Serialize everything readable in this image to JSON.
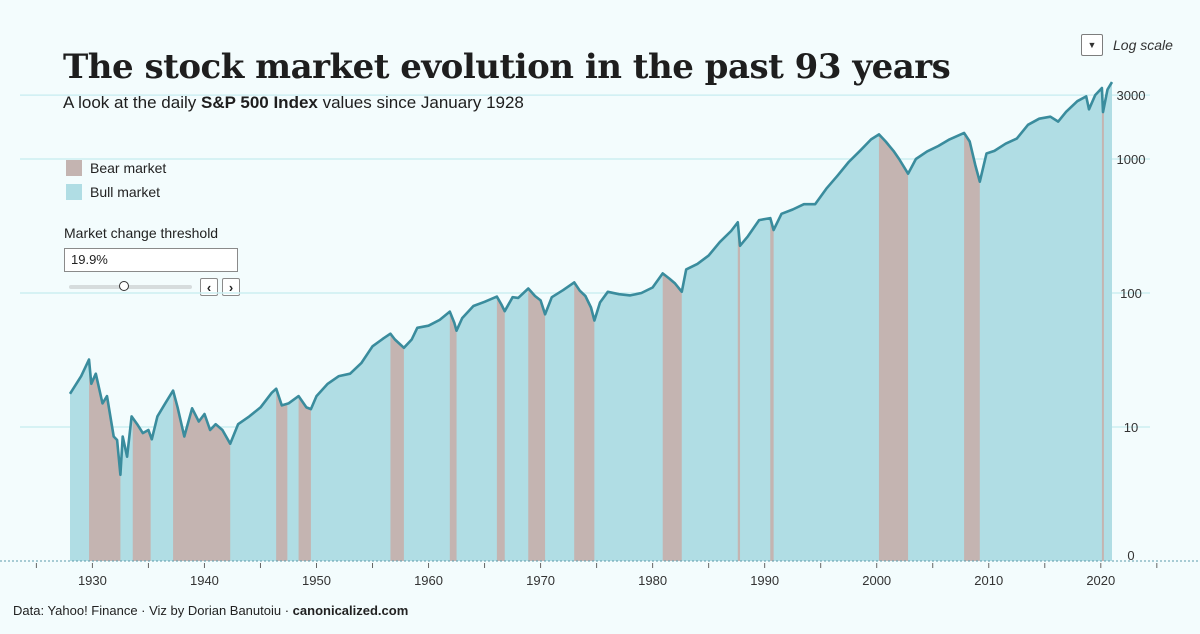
{
  "header": {
    "title": "The stock market evolution in the past 93 years",
    "subtitle_pre": "A look at the daily",
    "subtitle_bold": "S&P 500 Index",
    "subtitle_post": "values since January 1928"
  },
  "controls": {
    "log_scale_label": "Log scale",
    "dropdown_icon": "caret-down-icon",
    "threshold_label": "Market change threshold",
    "threshold_value": "19.9%",
    "threshold_slider_fraction": 0.45,
    "prev_icon": "chevron-left-icon",
    "next_icon": "chevron-right-icon"
  },
  "legend": [
    {
      "label": "Bear market",
      "color": "#c4b4b1"
    },
    {
      "label": "Bull market",
      "color": "#b0dde4"
    }
  ],
  "footer": {
    "source": "Data: Yahoo! Finance · Viz by Dorian Banutoiu ·",
    "site": "canonicalized.com"
  },
  "colors": {
    "background": "#f3fcfd",
    "bull": "#b0dde4",
    "bear": "#c4b4b1",
    "line": "#3a8c9d",
    "grid": "#cdeff2"
  },
  "chart_data": {
    "type": "area",
    "scale": "log",
    "xlim": [
      1928,
      2021
    ],
    "x_ticks": [
      "1930",
      "1940",
      "1950",
      "1960",
      "1970",
      "1980",
      "1990",
      "2000",
      "2010",
      "2020"
    ],
    "y_ticks": [
      "0",
      "10",
      "100",
      "1000",
      "3000"
    ],
    "grid": "horizontal",
    "legend_position": "left",
    "series": [
      {
        "points": [
          [
            1928.0,
            17.7
          ],
          [
            1929.0,
            24
          ],
          [
            1929.7,
            31.9
          ],
          [
            1929.9,
            21
          ],
          [
            1930.3,
            25
          ],
          [
            1930.9,
            15
          ],
          [
            1931.3,
            17
          ],
          [
            1931.9,
            8.5
          ],
          [
            1932.2,
            8
          ],
          [
            1932.5,
            4.4
          ],
          [
            1932.7,
            8.5
          ],
          [
            1933.1,
            6
          ],
          [
            1933.5,
            12
          ],
          [
            1934.0,
            10.5
          ],
          [
            1934.5,
            9
          ],
          [
            1935.0,
            9.5
          ],
          [
            1935.3,
            8.1
          ],
          [
            1935.8,
            12
          ],
          [
            1936.5,
            15
          ],
          [
            1937.2,
            18.7
          ],
          [
            1937.6,
            14
          ],
          [
            1938.2,
            8.5
          ],
          [
            1938.9,
            13.8
          ],
          [
            1939.5,
            11
          ],
          [
            1940.0,
            12.5
          ],
          [
            1940.5,
            9.5
          ],
          [
            1941.0,
            10.5
          ],
          [
            1941.6,
            9.5
          ],
          [
            1942.3,
            7.5
          ],
          [
            1943.0,
            10.5
          ],
          [
            1944.0,
            12
          ],
          [
            1945.0,
            14
          ],
          [
            1946.0,
            18
          ],
          [
            1946.4,
            19.3
          ],
          [
            1946.9,
            14.5
          ],
          [
            1947.5,
            15
          ],
          [
            1948.4,
            17
          ],
          [
            1949.1,
            14
          ],
          [
            1949.5,
            13.6
          ],
          [
            1950.0,
            17
          ],
          [
            1951.0,
            21
          ],
          [
            1952.0,
            24
          ],
          [
            1953.0,
            25
          ],
          [
            1954.0,
            30
          ],
          [
            1955.0,
            40
          ],
          [
            1956.0,
            46
          ],
          [
            1956.6,
            49.7
          ],
          [
            1957.0,
            45
          ],
          [
            1957.8,
            39
          ],
          [
            1958.5,
            45
          ],
          [
            1959.0,
            55
          ],
          [
            1960.0,
            57
          ],
          [
            1961.0,
            63
          ],
          [
            1961.9,
            72.6
          ],
          [
            1962.3,
            60
          ],
          [
            1962.5,
            52.3
          ],
          [
            1963.0,
            65
          ],
          [
            1964.0,
            80
          ],
          [
            1965.0,
            86
          ],
          [
            1966.1,
            94
          ],
          [
            1966.5,
            82
          ],
          [
            1966.8,
            73.2
          ],
          [
            1967.5,
            93
          ],
          [
            1968.0,
            92
          ],
          [
            1968.9,
            108
          ],
          [
            1969.5,
            95
          ],
          [
            1970.0,
            88
          ],
          [
            1970.4,
            69.3
          ],
          [
            1971.0,
            93
          ],
          [
            1972.0,
            105
          ],
          [
            1973.0,
            120
          ],
          [
            1973.5,
            104
          ],
          [
            1974.0,
            95
          ],
          [
            1974.5,
            78
          ],
          [
            1974.8,
            62.3
          ],
          [
            1975.3,
            85
          ],
          [
            1976.0,
            102
          ],
          [
            1977.0,
            98
          ],
          [
            1978.0,
            96
          ],
          [
            1979.0,
            100
          ],
          [
            1980.0,
            110
          ],
          [
            1980.9,
            140
          ],
          [
            1981.5,
            128
          ],
          [
            1982.0,
            118
          ],
          [
            1982.6,
            102
          ],
          [
            1983.0,
            150
          ],
          [
            1984.0,
            165
          ],
          [
            1985.0,
            190
          ],
          [
            1986.0,
            240
          ],
          [
            1987.0,
            290
          ],
          [
            1987.6,
            337
          ],
          [
            1987.8,
            225
          ],
          [
            1988.5,
            265
          ],
          [
            1989.5,
            350
          ],
          [
            1990.5,
            362
          ],
          [
            1990.8,
            295
          ],
          [
            1991.5,
            390
          ],
          [
            1992.5,
            420
          ],
          [
            1993.5,
            460
          ],
          [
            1994.5,
            460
          ],
          [
            1995.5,
            600
          ],
          [
            1996.5,
            750
          ],
          [
            1997.5,
            950
          ],
          [
            1998.5,
            1150
          ],
          [
            1999.5,
            1400
          ],
          [
            2000.2,
            1527
          ],
          [
            2000.8,
            1350
          ],
          [
            2001.5,
            1150
          ],
          [
            2002.0,
            1000
          ],
          [
            2002.8,
            777
          ],
          [
            2003.5,
            1000
          ],
          [
            2004.5,
            1140
          ],
          [
            2005.5,
            1250
          ],
          [
            2006.5,
            1400
          ],
          [
            2007.8,
            1565
          ],
          [
            2008.3,
            1350
          ],
          [
            2008.8,
            900
          ],
          [
            2009.2,
            677
          ],
          [
            2009.8,
            1100
          ],
          [
            2010.5,
            1150
          ],
          [
            2011.5,
            1300
          ],
          [
            2012.5,
            1420
          ],
          [
            2013.5,
            1800
          ],
          [
            2014.5,
            2000
          ],
          [
            2015.5,
            2070
          ],
          [
            2016.2,
            1900
          ],
          [
            2016.9,
            2250
          ],
          [
            2017.9,
            2700
          ],
          [
            2018.7,
            2930
          ],
          [
            2018.95,
            2350
          ],
          [
            2019.5,
            3000
          ],
          [
            2020.1,
            3390
          ],
          [
            2020.2,
            2240
          ],
          [
            2020.6,
            3300
          ],
          [
            2021.0,
            3750
          ]
        ]
      }
    ],
    "bear_markets": [
      [
        1929.7,
        1932.5
      ],
      [
        1933.6,
        1935.2
      ],
      [
        1937.2,
        1942.3
      ],
      [
        1946.4,
        1947.4
      ],
      [
        1948.4,
        1949.5
      ],
      [
        1956.6,
        1957.8
      ],
      [
        1961.9,
        1962.5
      ],
      [
        1966.1,
        1966.8
      ],
      [
        1968.9,
        1970.4
      ],
      [
        1973.0,
        1974.8
      ],
      [
        1980.9,
        1982.6
      ],
      [
        1987.6,
        1987.8
      ],
      [
        1990.5,
        1990.8
      ],
      [
        2000.2,
        2002.8
      ],
      [
        2007.8,
        2009.2
      ],
      [
        2020.1,
        2020.2
      ]
    ]
  }
}
